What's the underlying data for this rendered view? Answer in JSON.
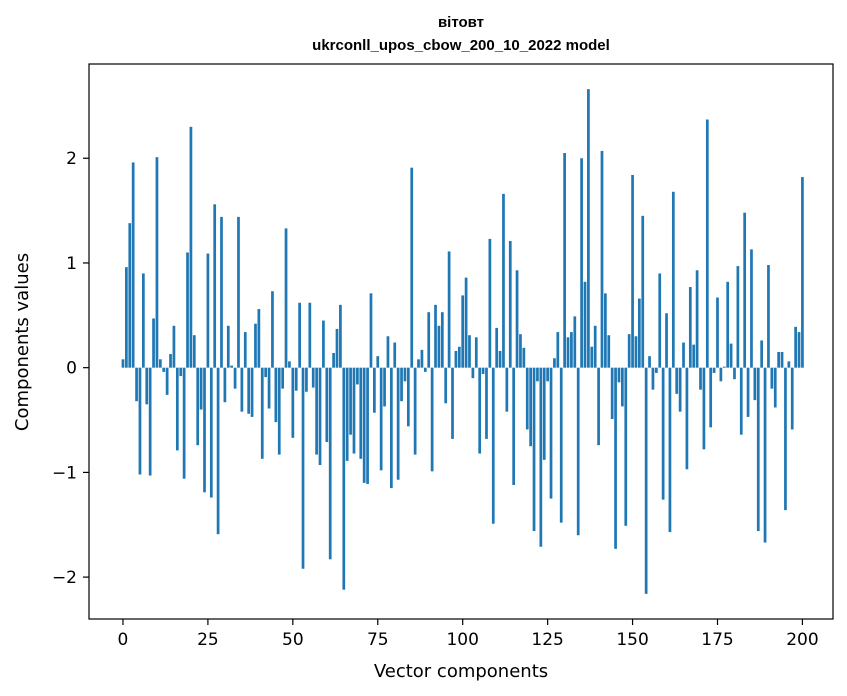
{
  "chart_data": {
    "type": "bar",
    "title_line1": "вітовт",
    "title_line2": "ukrconll_upos_cbow_200_10_2022 model",
    "xlabel": "Vector components",
    "ylabel": "Components values",
    "xlim": [
      -10,
      209
    ],
    "ylim": [
      -2.4,
      2.9
    ],
    "xticks": [
      0,
      25,
      50,
      75,
      100,
      125,
      150,
      175,
      200
    ],
    "yticks": [
      -2,
      -1,
      0,
      1,
      2
    ],
    "ytick_labels": [
      "−2",
      "−1",
      "0",
      "1",
      "2"
    ],
    "bar_color": "#1f77b4",
    "grid": false,
    "values": [
      0.08,
      0.96,
      1.38,
      1.96,
      -0.32,
      -1.02,
      0.9,
      -0.35,
      -1.03,
      0.47,
      2.01,
      0.08,
      -0.04,
      -0.26,
      0.13,
      0.4,
      -0.79,
      -0.08,
      -1.06,
      1.1,
      2.3,
      0.31,
      -0.74,
      -0.4,
      -1.19,
      1.09,
      -1.24,
      1.56,
      -1.59,
      1.44,
      -0.33,
      0.4,
      0.02,
      -0.2,
      1.44,
      -0.42,
      0.34,
      -0.44,
      -0.47,
      0.42,
      0.56,
      -0.87,
      -0.09,
      -0.39,
      0.73,
      -0.52,
      -0.83,
      -0.2,
      1.33,
      0.06,
      -0.67,
      -0.22,
      0.62,
      -1.92,
      -0.23,
      0.62,
      -0.19,
      -0.83,
      -0.93,
      0.45,
      -0.71,
      -1.83,
      0.14,
      0.37,
      0.6,
      -2.12,
      -0.89,
      -0.64,
      -0.82,
      -0.16,
      -0.87,
      -1.1,
      -1.11,
      0.71,
      -0.43,
      0.11,
      -0.98,
      -0.37,
      0.3,
      -1.15,
      0.24,
      -1.07,
      -0.32,
      -0.13,
      -0.56,
      1.91,
      -0.83,
      0.08,
      0.17,
      -0.04,
      0.53,
      -0.99,
      0.6,
      0.4,
      0.53,
      -0.34,
      1.11,
      -0.68,
      0.16,
      0.2,
      0.69,
      0.86,
      0.31,
      -0.1,
      0.29,
      -0.82,
      -0.06,
      -0.68,
      1.23,
      -1.49,
      0.38,
      0.16,
      1.66,
      -0.42,
      1.21,
      -1.12,
      0.93,
      0.32,
      0.19,
      -0.59,
      -0.75,
      -1.56,
      -0.13,
      -1.71,
      -0.88,
      -0.13,
      -1.25,
      0.09,
      0.34,
      -1.48,
      2.05,
      0.29,
      0.34,
      0.49,
      -1.6,
      2.0,
      0.82,
      2.66,
      0.2,
      0.4,
      -0.74,
      2.07,
      0.71,
      0.31,
      -0.49,
      -1.73,
      -0.14,
      -0.37,
      -1.51,
      0.32,
      1.84,
      0.3,
      0.66,
      1.45,
      -2.16,
      0.11,
      -0.21,
      -0.05,
      0.9,
      -1.26,
      0.52,
      -1.57,
      1.68,
      -0.25,
      -0.42,
      0.24,
      -0.97,
      0.77,
      0.22,
      0.93,
      -0.21,
      -0.78,
      2.37,
      -0.57,
      -0.05,
      0.67,
      -0.13,
      0.01,
      0.82,
      0.23,
      -0.11,
      0.97,
      -0.64,
      1.48,
      -0.47,
      1.13,
      -0.31,
      -1.56,
      0.26,
      -1.67,
      0.98,
      -0.2,
      -0.38,
      0.15,
      0.15,
      -1.36,
      0.06,
      -0.59,
      0.39,
      0.34,
      1.82
    ]
  }
}
